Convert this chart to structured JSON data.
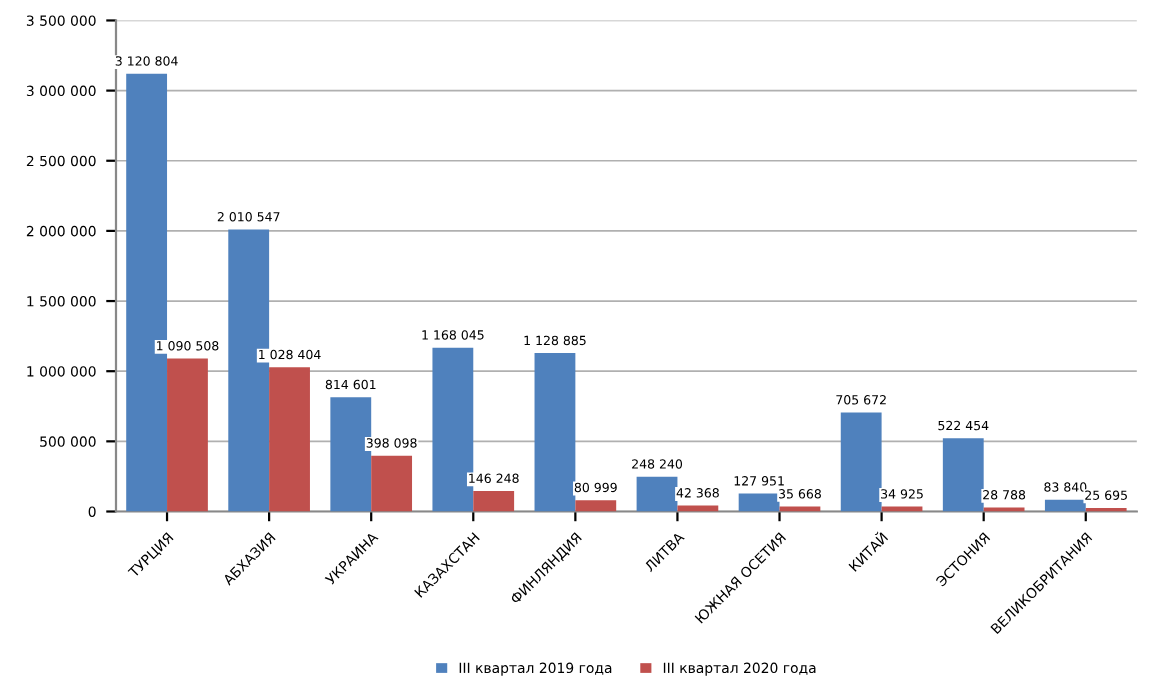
{
  "chart_data": {
    "type": "bar",
    "categories": [
      "ТУРЦИЯ",
      "АБХАЗИЯ",
      "УКРАИНА",
      "КАЗАХСТАН",
      "ФИНЛЯНДИЯ",
      "ЛИТВА",
      "ЮЖНАЯ ОСЕТИЯ",
      "КИТАЙ",
      "ЭСТОНИЯ",
      "ВЕЛИКОБРИТАНИЯ"
    ],
    "series": [
      {
        "name": "III квартал 2019 года",
        "color": "#4f81bd",
        "values": [
          3120804,
          2010547,
          814601,
          1168045,
          1128885,
          248240,
          127951,
          705672,
          522454,
          83840
        ]
      },
      {
        "name": "III квартал 2020 года",
        "color": "#c0504d",
        "values": [
          1090508,
          1028404,
          398098,
          146248,
          80999,
          42368,
          35668,
          34925,
          28788,
          25695
        ]
      }
    ],
    "ylim": [
      0,
      3500000
    ],
    "yticks": [
      {
        "value": 0,
        "label": "0"
      },
      {
        "value": 500000,
        "label": "500 000"
      },
      {
        "value": 1000000,
        "label": "1 000 000"
      },
      {
        "value": 1500000,
        "label": "1 500 000"
      },
      {
        "value": 2000000,
        "label": "2 000 000"
      },
      {
        "value": 2500000,
        "label": "2 500 000"
      },
      {
        "value": 3000000,
        "label": "3 000 000"
      },
      {
        "value": 3500000,
        "label": "3 500 000"
      }
    ],
    "grid": "y",
    "legend": "bottom",
    "data_labels": true
  }
}
